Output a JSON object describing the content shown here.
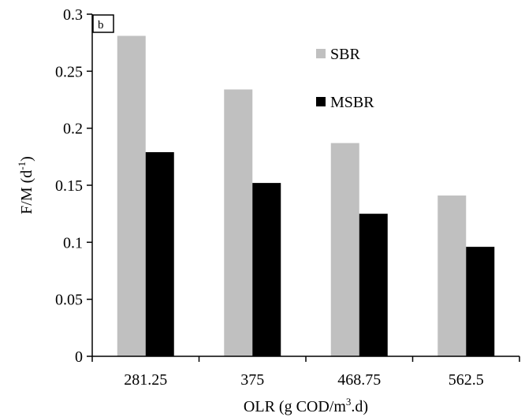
{
  "chart_data": {
    "type": "bar",
    "panel_label": "b",
    "categories": [
      "281.25",
      "375",
      "468.75",
      "562.5"
    ],
    "series": [
      {
        "name": "SBR",
        "color": "#c0c0c0",
        "values": [
          0.281,
          0.234,
          0.187,
          0.141
        ]
      },
      {
        "name": "MSBR",
        "color": "#000000",
        "values": [
          0.179,
          0.152,
          0.125,
          0.096
        ]
      }
    ],
    "xlabel": {
      "main": "OLR (g COD/m",
      "sup": "3",
      "tail": ".d)"
    },
    "ylabel": {
      "main": "F/M (d",
      "sup": "-1",
      "tail": ")"
    },
    "ylim": [
      0,
      0.3
    ],
    "yticks": [
      "0",
      "0.05",
      "0.1",
      "0.15",
      "0.2",
      "0.25",
      "0.3"
    ],
    "grid": false,
    "legend_position": "top-right"
  }
}
